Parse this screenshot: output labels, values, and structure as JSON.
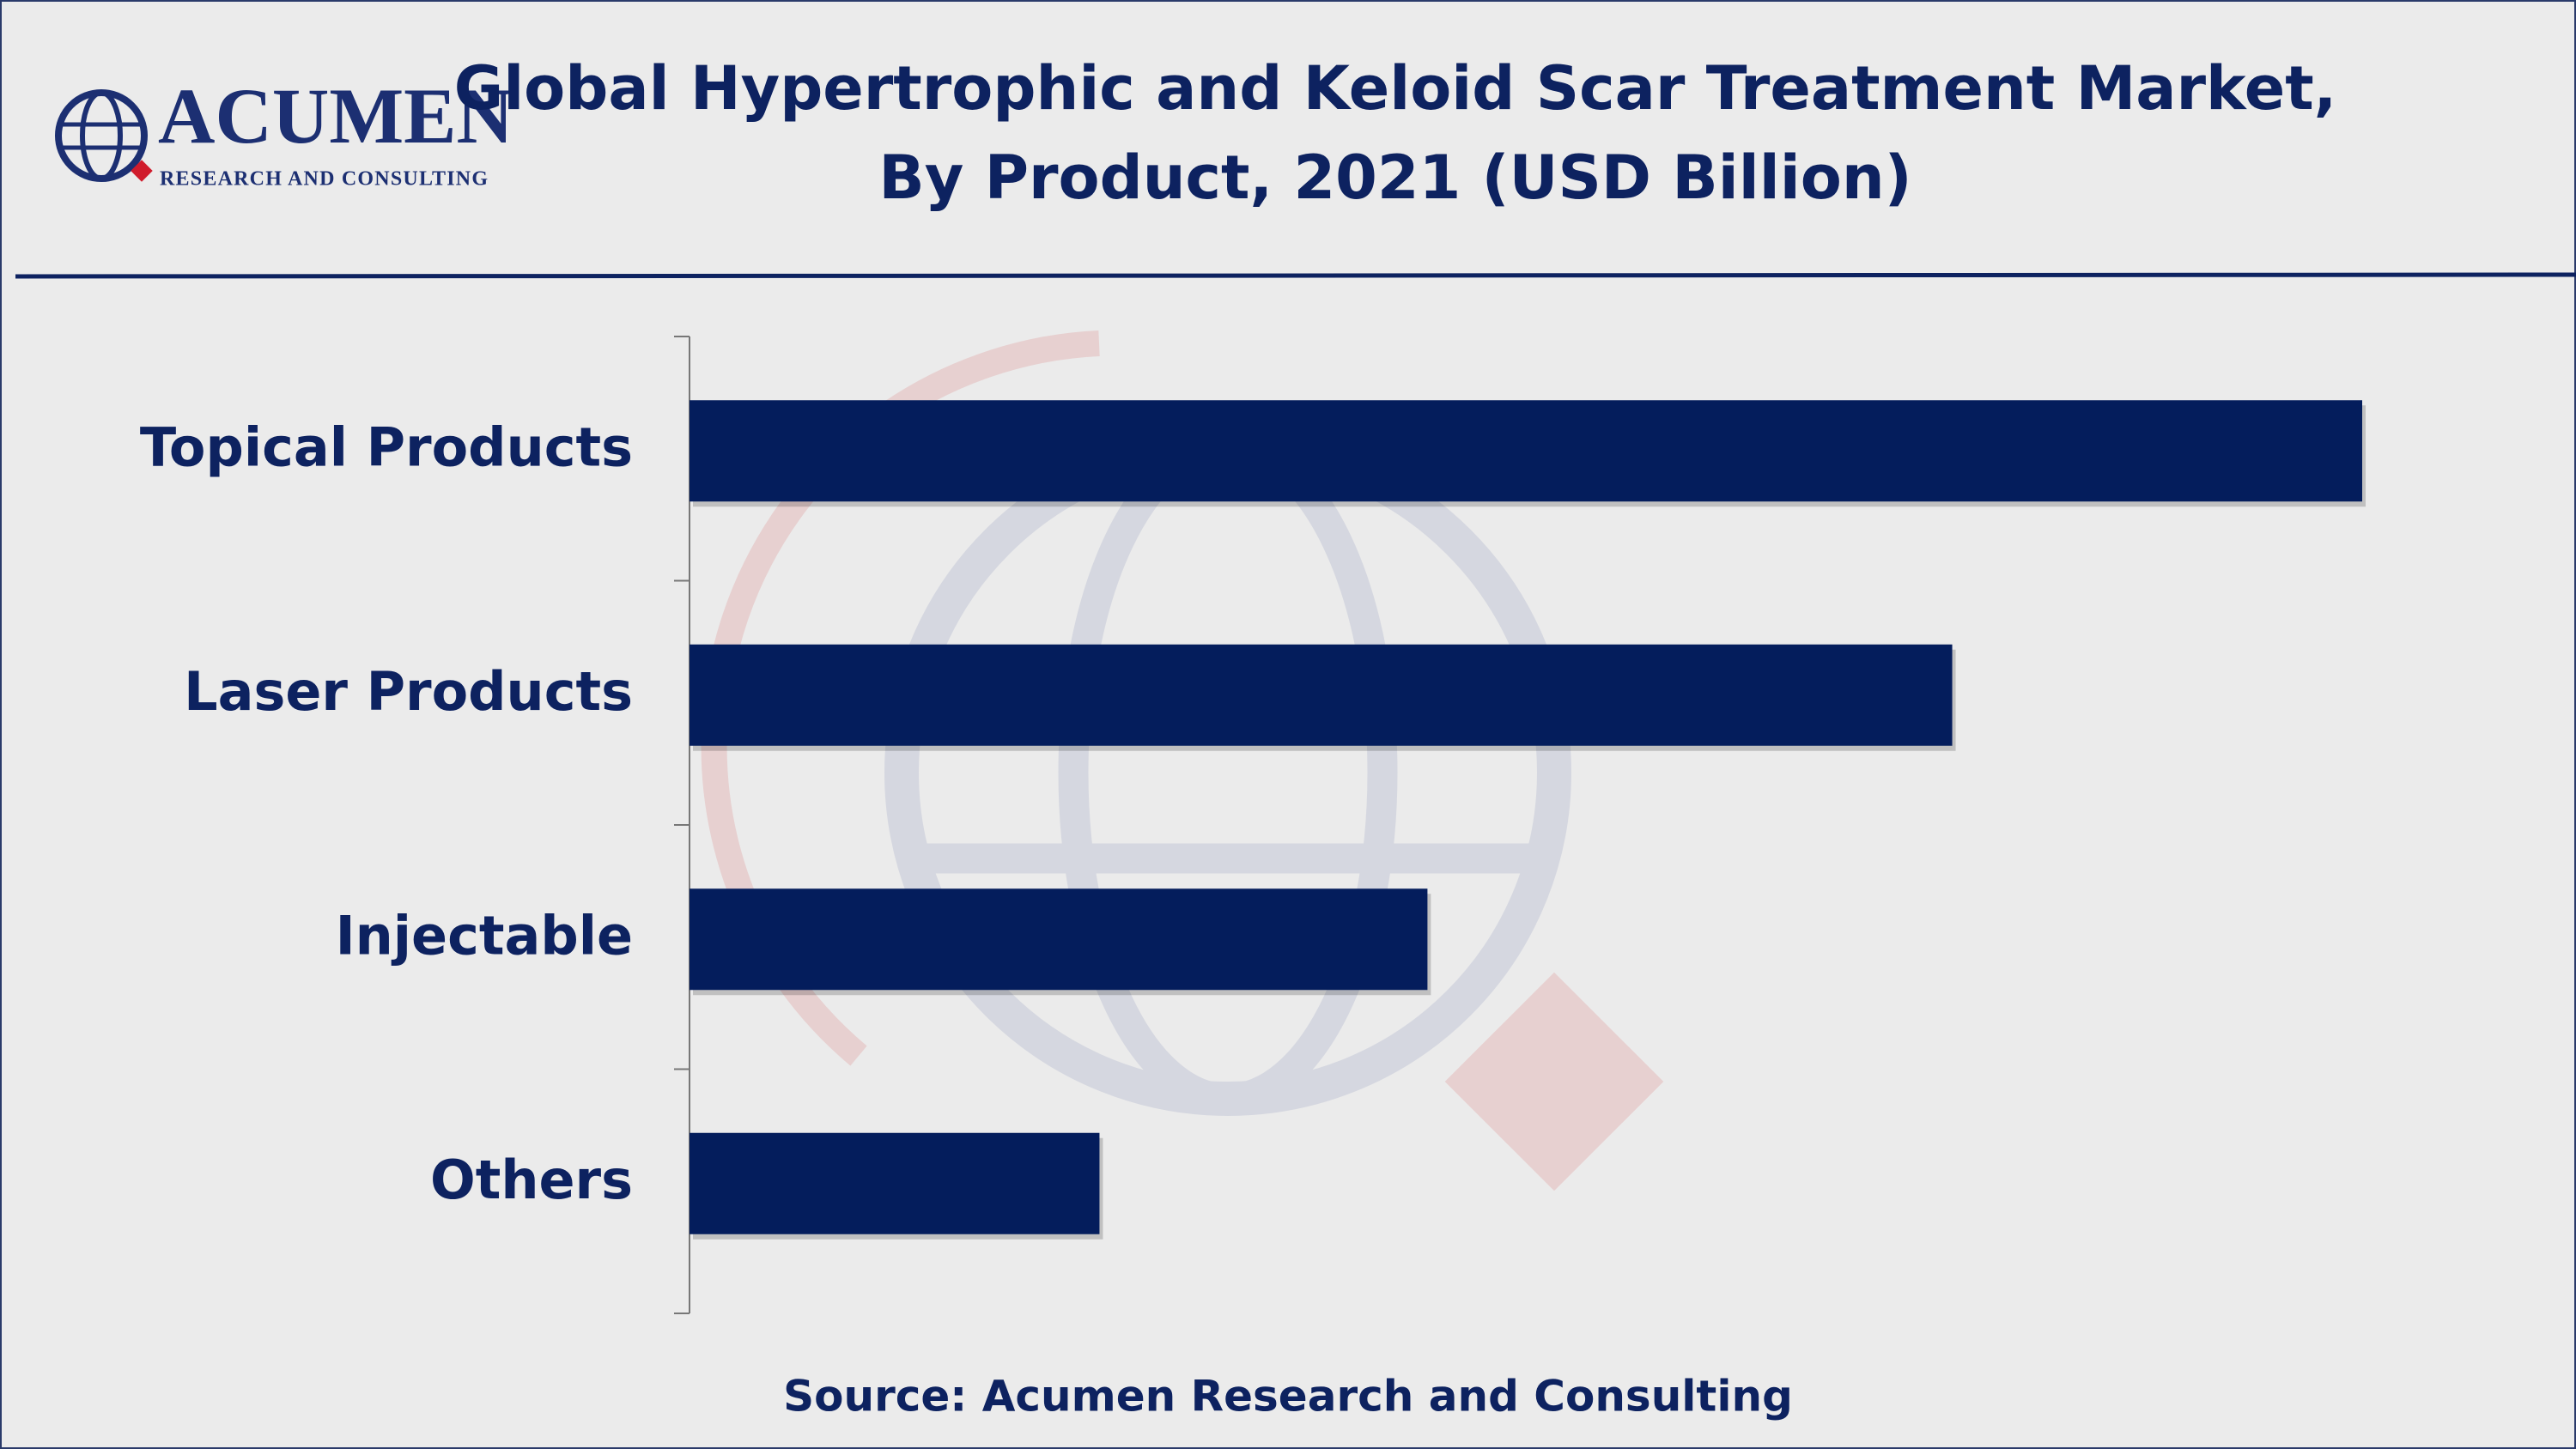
{
  "logo": {
    "name": "ACUMEN",
    "tagline": "RESEARCH AND CONSULTING"
  },
  "chart_data": {
    "type": "bar",
    "orientation": "horizontal",
    "title": "Global Hypertrophic and Keloid Scar Treatment Market,",
    "subtitle": "By Product, 2021 (USD Billion)",
    "categories": [
      "Topical Products",
      "Laser Products",
      "Injectable",
      "Others"
    ],
    "values": [
      1.02,
      0.77,
      0.45,
      0.25
    ],
    "color": "#041d5c",
    "source": "Source: Acumen Research and Consulting"
  }
}
